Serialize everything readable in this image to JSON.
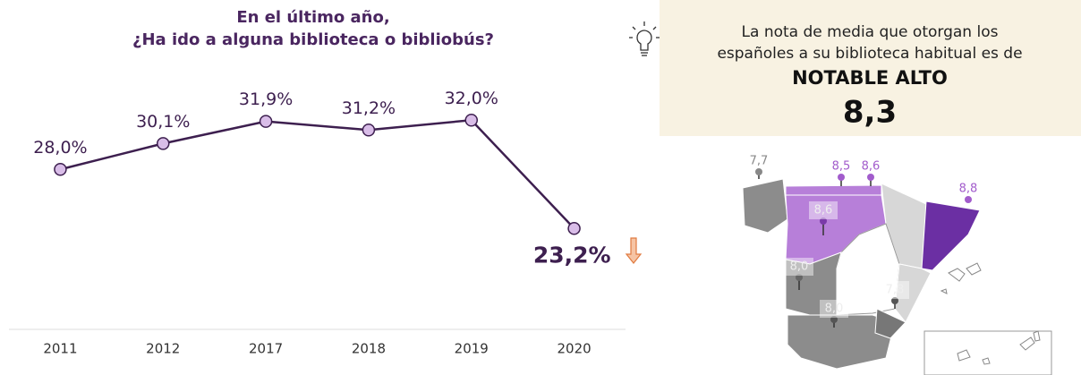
{
  "chart_data": {
    "type": "line",
    "title": [
      "En el último año,",
      "¿Ha ido a alguna biblioteca o bibliobús?"
    ],
    "categories": [
      "2011",
      "2012",
      "2017",
      "2018",
      "2019",
      "2020"
    ],
    "values": [
      28.0,
      30.1,
      31.9,
      31.2,
      32.0,
      23.2
    ],
    "value_labels": [
      "28,0%",
      "30,1%",
      "31,9%",
      "31,2%",
      "32,0%",
      "23,2%"
    ],
    "color": "#3d1f4f",
    "marker_color": "#d9bde8",
    "ylim": [
      15,
      37
    ]
  },
  "callout": {
    "text_lines": [
      "La nota de media que otorgan los",
      "españoles a su biblioteca habitual es de"
    ],
    "rating": "NOTABLE ALTO",
    "score": "8,3"
  },
  "map": {
    "labels": [
      "7,7",
      "8,5",
      "8,6",
      "8,8",
      "8,6",
      "8,0",
      "7,8",
      "8,0"
    ]
  }
}
